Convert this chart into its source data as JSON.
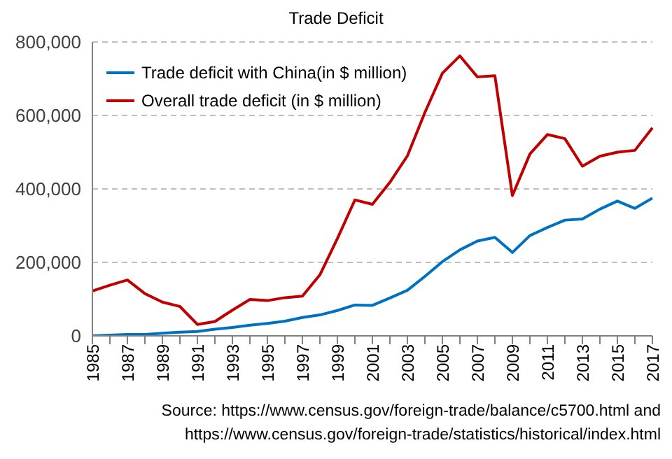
{
  "chart_data": {
    "type": "line",
    "title": "Trade Deficit",
    "categories": [
      "1985",
      null,
      "1987",
      null,
      "1989",
      null,
      "1991",
      null,
      "1993",
      null,
      "1995",
      null,
      "1997",
      null,
      "1999",
      null,
      "2001",
      null,
      "2003",
      null,
      "2005",
      null,
      "2007",
      null,
      "2009",
      null,
      "2011",
      null,
      "2013",
      null,
      "2015",
      null,
      "2017"
    ],
    "series": [
      {
        "name": "Trade deficit with China(in $ million)",
        "color": "#0070c0",
        "values": [
          0,
          2000,
          4000,
          4000,
          7000,
          10000,
          12000,
          18000,
          23000,
          29000,
          34000,
          40000,
          50000,
          57000,
          69000,
          84000,
          83000,
          103000,
          124000,
          162000,
          202000,
          234000,
          258000,
          268000,
          227000,
          273000,
          295000,
          315000,
          318000,
          345000,
          367000,
          347000,
          375000
        ]
      },
      {
        "name": "Overall trade deficit (in $ million)",
        "color": "#c00000",
        "values": [
          122000,
          138000,
          152000,
          115000,
          92000,
          80000,
          31000,
          39000,
          70000,
          99000,
          96000,
          104000,
          108000,
          166000,
          265000,
          370000,
          358000,
          418000,
          490000,
          608000,
          715000,
          762000,
          705000,
          708000,
          382000,
          495000,
          548000,
          537000,
          462000,
          489000,
          500000,
          505000,
          566000
        ]
      }
    ],
    "ylim": [
      0,
      800000
    ],
    "yticks": [
      {
        "value": 0,
        "label": "0"
      },
      {
        "value": 200000,
        "label": "200,000"
      },
      {
        "value": 400000,
        "label": "400,000"
      },
      {
        "value": 600000,
        "label": "600,000"
      },
      {
        "value": 800000,
        "label": "800,000"
      }
    ],
    "grid": "y",
    "legend": "top left",
    "marker": "none",
    "line_style": "solid",
    "annotations": [
      "Source: https://www.census.gov/foreign-trade/balance/c5700.html and",
      "https://www.census.gov/foreign-trade/statistics/historical/index.html"
    ]
  }
}
